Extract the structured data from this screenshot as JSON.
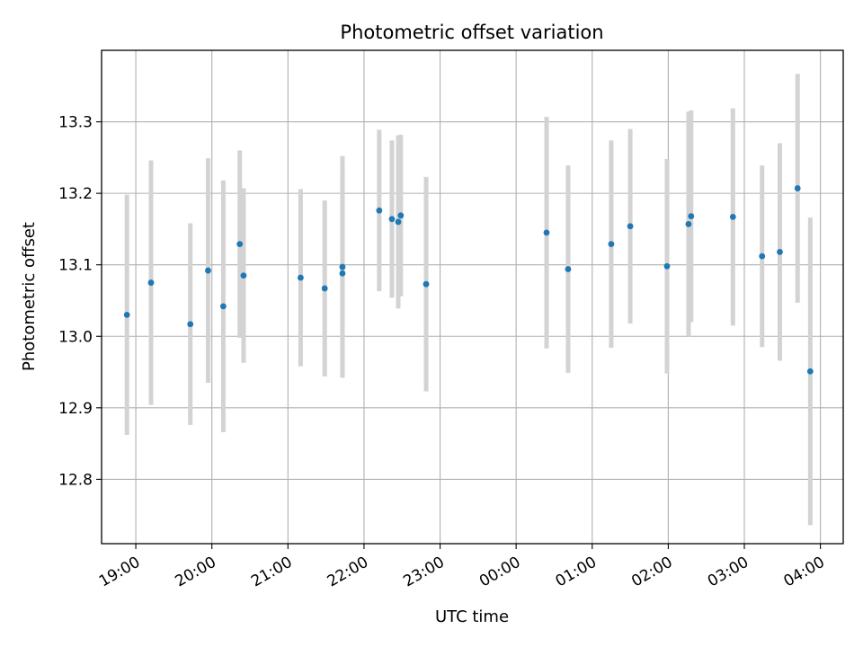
{
  "chart_data": {
    "type": "scatter",
    "title": "Photometric offset variation",
    "xlabel": "UTC time",
    "ylabel": "Photometric offset",
    "x_axis_type": "time",
    "x_range": [
      "18:33",
      "04:18"
    ],
    "ylim": [
      12.71,
      13.4
    ],
    "grid": true,
    "x_ticks": [
      "19:00",
      "20:00",
      "21:00",
      "22:00",
      "23:00",
      "00:00",
      "01:00",
      "02:00",
      "03:00",
      "04:00"
    ],
    "y_ticks": [
      "12.8",
      "12.9",
      "13.0",
      "13.1",
      "13.2",
      "13.3"
    ],
    "colors": {
      "points": "#1f77b4",
      "errorbars": "#d3d3d3",
      "grid": "#b0b0b0"
    },
    "series": [
      {
        "points": [
          {
            "x": "18:53",
            "y": 13.03,
            "err": 0.168
          },
          {
            "x": "19:12",
            "y": 13.075,
            "err": 0.171
          },
          {
            "x": "19:43",
            "y": 13.017,
            "err": 0.141
          },
          {
            "x": "19:57",
            "y": 13.092,
            "err": 0.157
          },
          {
            "x": "20:09",
            "y": 13.042,
            "err": 0.176
          },
          {
            "x": "20:22",
            "y": 13.129,
            "err": 0.131
          },
          {
            "x": "20:25",
            "y": 13.085,
            "err": 0.122
          },
          {
            "x": "21:10",
            "y": 13.082,
            "err": 0.124
          },
          {
            "x": "21:29",
            "y": 13.067,
            "err": 0.123
          },
          {
            "x": "21:43",
            "y": 13.097,
            "err": 0.155
          },
          {
            "x": "21:43",
            "y": 13.088,
            "err": 0.144
          },
          {
            "x": "22:12",
            "y": 13.176,
            "err": 0.113
          },
          {
            "x": "22:22",
            "y": 13.164,
            "err": 0.11
          },
          {
            "x": "22:27",
            "y": 13.16,
            "err": 0.121
          },
          {
            "x": "22:29",
            "y": 13.169,
            "err": 0.113
          },
          {
            "x": "22:49",
            "y": 13.073,
            "err": 0.15
          },
          {
            "x": "00:24",
            "y": 13.145,
            "err": 0.162
          },
          {
            "x": "00:41",
            "y": 13.094,
            "err": 0.145
          },
          {
            "x": "01:15",
            "y": 13.129,
            "err": 0.145
          },
          {
            "x": "01:30",
            "y": 13.154,
            "err": 0.136
          },
          {
            "x": "01:59",
            "y": 13.098,
            "err": 0.15
          },
          {
            "x": "02:16",
            "y": 13.157,
            "err": 0.157
          },
          {
            "x": "02:18",
            "y": 13.168,
            "err": 0.148
          },
          {
            "x": "02:51",
            "y": 13.167,
            "err": 0.152
          },
          {
            "x": "03:14",
            "y": 13.112,
            "err": 0.127
          },
          {
            "x": "03:28",
            "y": 13.118,
            "err": 0.152
          },
          {
            "x": "03:42",
            "y": 13.207,
            "err": 0.16
          },
          {
            "x": "03:52",
            "y": 12.951,
            "err": 0.215
          }
        ]
      }
    ]
  }
}
